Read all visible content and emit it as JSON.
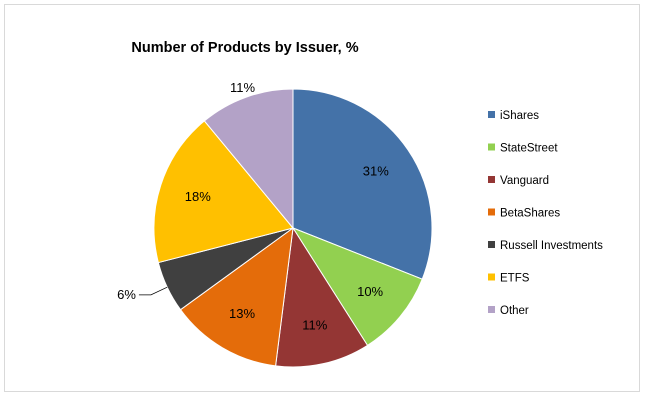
{
  "chart_data": {
    "type": "pie",
    "title": "Number of Products by Issuer, %",
    "categories": [
      "iShares",
      "StateStreet",
      "Vanguard",
      "BetaShares",
      "Russell Investments",
      "ETFS",
      "Other"
    ],
    "values": [
      31,
      10,
      11,
      13,
      6,
      18,
      11
    ],
    "data_labels": [
      "31%",
      "10%",
      "11%",
      "13%",
      "6%",
      "18%",
      "11%"
    ],
    "colors": [
      "#4472a8",
      "#92d050",
      "#943634",
      "#e46c0a",
      "#404040",
      "#ffc000",
      "#b3a2c7"
    ],
    "legend_position": "right",
    "start_angle": "12 o'clock",
    "direction": "clockwise"
  }
}
